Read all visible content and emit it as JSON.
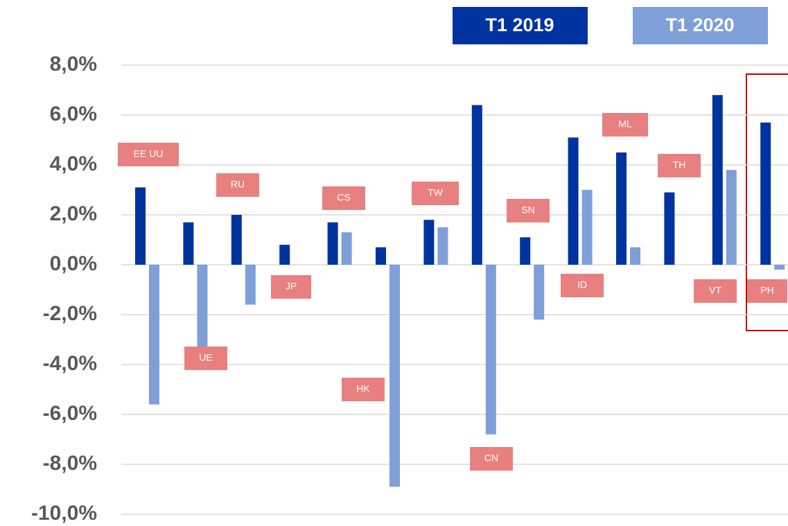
{
  "chart_data": {
    "type": "bar",
    "categories": [
      "EE UU",
      "UE",
      "RU",
      "JP",
      "CS",
      "HK",
      "TW",
      "CN",
      "SN",
      "ID",
      "ML",
      "TH",
      "VT",
      "PH"
    ],
    "series": [
      {
        "name": "T1 2019",
        "color": "#0033a0",
        "values": [
          3.1,
          1.7,
          2.0,
          0.8,
          1.7,
          0.7,
          1.8,
          6.4,
          1.1,
          5.1,
          4.5,
          2.9,
          6.8,
          5.7
        ]
      },
      {
        "name": "T1 2020",
        "color": "#7f9fd8",
        "values": [
          -5.6,
          -3.5,
          -1.6,
          null,
          1.3,
          -8.9,
          1.5,
          -6.8,
          -2.2,
          3.0,
          0.7,
          null,
          3.8,
          -0.2
        ]
      }
    ],
    "ylim": [
      -10,
      8
    ],
    "yticks": [
      {
        "value": 8,
        "label": "8,0%"
      },
      {
        "value": 6,
        "label": "6,0%"
      },
      {
        "value": 4,
        "label": "4,0%"
      },
      {
        "value": 2,
        "label": "2,0%"
      },
      {
        "value": 0,
        "label": "0,0%"
      },
      {
        "value": -2,
        "label": "-2,0%"
      },
      {
        "value": -4,
        "label": "-4,0%"
      },
      {
        "value": -6,
        "label": "-6,0%"
      },
      {
        "value": -8,
        "label": "-8,0%"
      },
      {
        "value": -10,
        "label": "-10,0%"
      }
    ],
    "grid": true
  }
}
